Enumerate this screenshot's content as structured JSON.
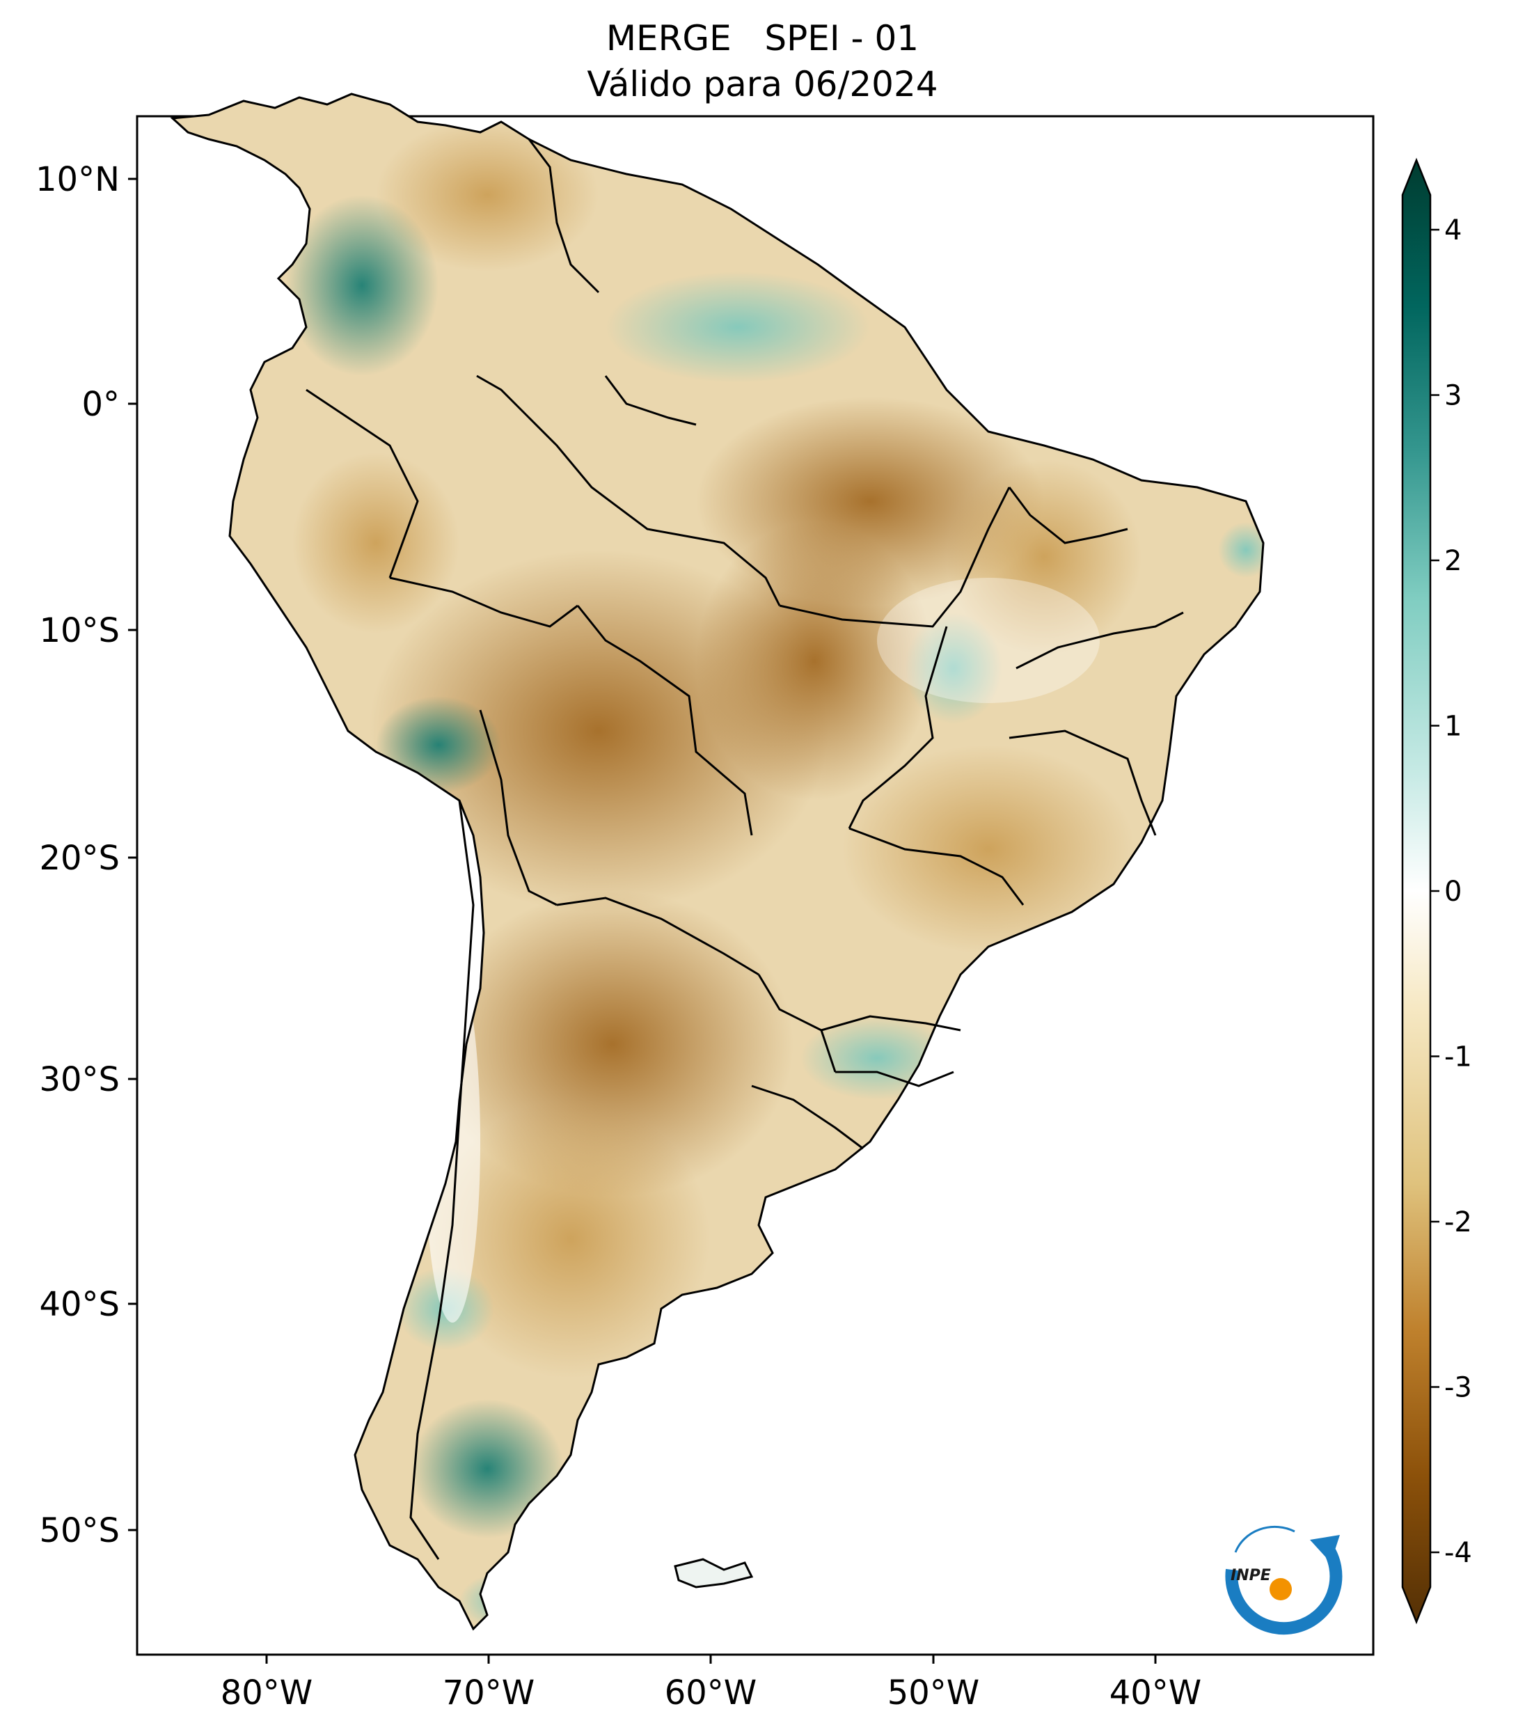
{
  "title": {
    "line1": "MERGE   SPEI - 01",
    "line2": "Válido para 06/2024"
  },
  "map": {
    "region": "América do Sul",
    "variable": "SPEI - 01",
    "longitude_labels": [
      "80°W",
      "70°W",
      "60°W",
      "50°W",
      "40°W"
    ],
    "latitude_labels": [
      "10°N",
      "0°",
      "10°S",
      "20°S",
      "30°S",
      "40°S",
      "50°S"
    ]
  },
  "colorbar": {
    "min": -4,
    "max": 4,
    "tick_labels": [
      "4",
      "3",
      "2",
      "1",
      "0",
      "-1",
      "-2",
      "-3",
      "-4"
    ],
    "extend": "both",
    "colormap": "BrBG",
    "colors": {
      "dry_extreme": "#543005",
      "dry_strong": "#8c510a",
      "dry_moderate": "#bf812d",
      "dry_mild": "#dfc27d",
      "dry_slight": "#f6e8c3",
      "neutral": "#ffffff",
      "wet_slight": "#c7eae5",
      "wet_mild": "#80cdc1",
      "wet_moderate": "#35978f",
      "wet_strong": "#01665e",
      "wet_extreme": "#003c30"
    }
  },
  "logo": {
    "text": "INPE",
    "ring_color": "#1a7dc2",
    "dot_color": "#f39200"
  }
}
